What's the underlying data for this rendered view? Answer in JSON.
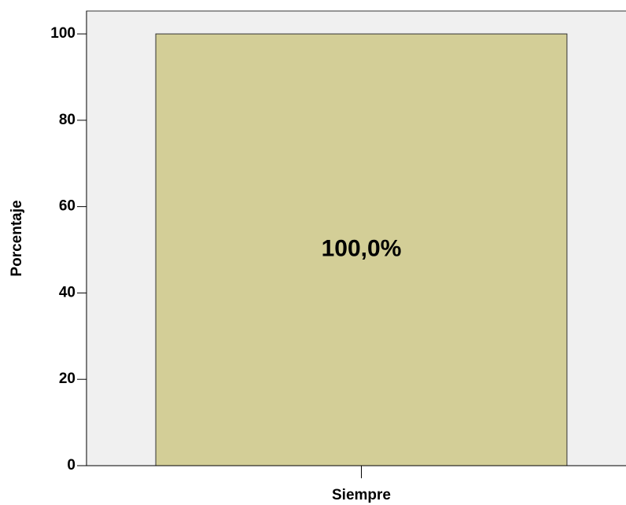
{
  "chart_data": {
    "type": "bar",
    "y_label": "Porcentaje",
    "categories": [
      "Siempre"
    ],
    "values": [
      100
    ],
    "value_labels": [
      "100,0%"
    ],
    "color": "#d3ce97",
    "ylim": [
      0,
      105.3
    ],
    "yticks": [
      0,
      20,
      40,
      60,
      80,
      100
    ],
    "grid": false
  }
}
